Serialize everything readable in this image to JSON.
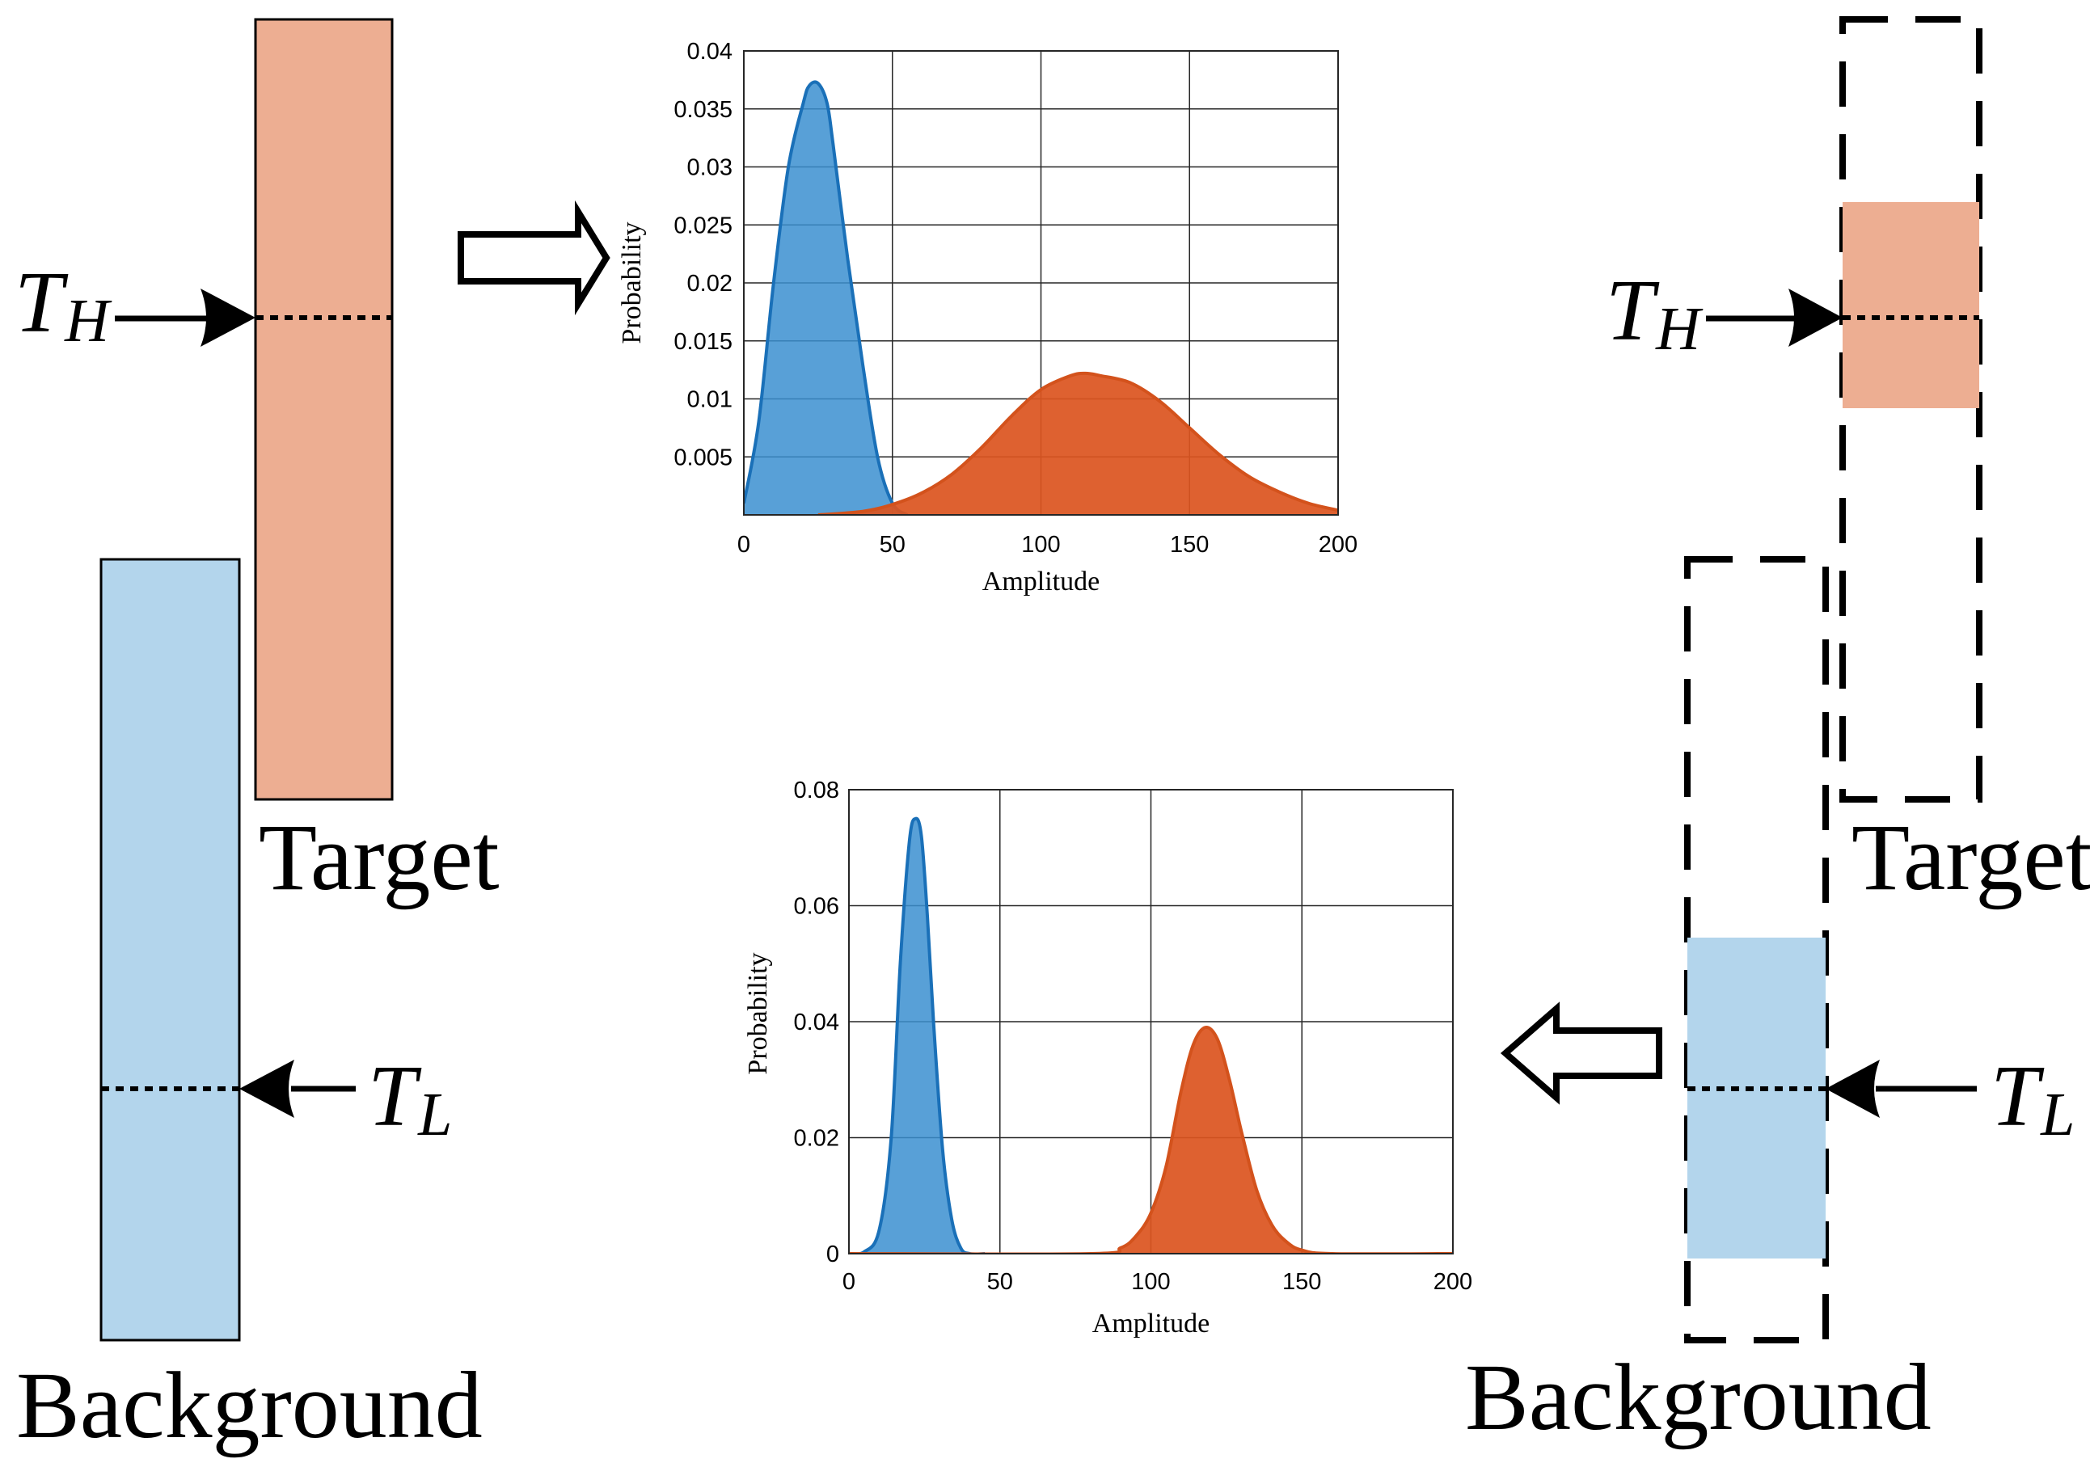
{
  "labels": {
    "target": "Target",
    "background": "Background",
    "threshold_high": {
      "main": "T",
      "sub": "H"
    },
    "threshold_low": {
      "main": "T",
      "sub": "L"
    }
  },
  "colors": {
    "target_fill": "#edae92",
    "background_fill": "#b3d5ec",
    "series_blue": "#3b8fd0",
    "series_blue_line": "#1a70b8",
    "series_orange": "#dc5520",
    "series_orange_line": "#d3521c"
  },
  "chart_data": [
    {
      "type": "area",
      "xlabel": "Amplitude",
      "ylabel": "Probability",
      "xlim": [
        0,
        200
      ],
      "ylim": [
        0,
        0.04
      ],
      "xticks": [
        0,
        50,
        100,
        150,
        200
      ],
      "yticks": [
        0.005,
        0.01,
        0.015,
        0.02,
        0.025,
        0.03,
        0.035,
        0.04
      ],
      "ytick_labels": [
        "0.005",
        "0.01",
        "0.015",
        "0.02",
        "0.025",
        "0.03",
        "0.035",
        "0.04"
      ],
      "grid": true,
      "series": [
        {
          "color": "series_blue",
          "x": [
            0,
            5,
            10,
            15,
            20,
            22,
            25,
            28,
            30,
            35,
            40,
            45,
            50,
            55
          ],
          "y": [
            0.001,
            0.008,
            0.02,
            0.03,
            0.0355,
            0.037,
            0.0372,
            0.0355,
            0.032,
            0.022,
            0.013,
            0.005,
            0.001,
            0
          ]
        },
        {
          "color": "series_orange",
          "x": [
            25,
            40,
            50,
            60,
            70,
            80,
            90,
            100,
            110,
            115,
            120,
            130,
            140,
            150,
            160,
            170,
            180,
            190,
            200
          ],
          "y": [
            0,
            0.0003,
            0.0009,
            0.0019,
            0.0035,
            0.0058,
            0.0085,
            0.0108,
            0.012,
            0.0122,
            0.012,
            0.0114,
            0.0098,
            0.0075,
            0.0052,
            0.0033,
            0.002,
            0.001,
            0.0004
          ]
        }
      ]
    },
    {
      "type": "area",
      "xlabel": "Amplitude",
      "ylabel": "Probability",
      "xlim": [
        0,
        200
      ],
      "ylim": [
        0,
        0.08
      ],
      "xticks": [
        0,
        50,
        100,
        150,
        200
      ],
      "yticks": [
        0,
        0.02,
        0.04,
        0.06,
        0.08
      ],
      "ytick_labels": [
        "0",
        "0.02",
        "0.04",
        "0.06",
        "0.08"
      ],
      "grid": true,
      "series": [
        {
          "color": "series_blue",
          "x": [
            0,
            5,
            10,
            14,
            17,
            20,
            22,
            24,
            26,
            28,
            31,
            34,
            37,
            40,
            45
          ],
          "y": [
            0,
            0.0003,
            0.004,
            0.02,
            0.05,
            0.071,
            0.075,
            0.072,
            0.058,
            0.04,
            0.018,
            0.006,
            0.001,
            0,
            0
          ]
        },
        {
          "color": "series_orange",
          "x": [
            0,
            80,
            90,
            95,
            100,
            105,
            110,
            114,
            118,
            122,
            126,
            130,
            135,
            140,
            145,
            150,
            160,
            200
          ],
          "y": [
            0,
            0,
            0.001,
            0.003,
            0.007,
            0.015,
            0.028,
            0.036,
            0.039,
            0.037,
            0.03,
            0.021,
            0.011,
            0.005,
            0.002,
            0.0006,
            0,
            0
          ]
        }
      ]
    }
  ]
}
